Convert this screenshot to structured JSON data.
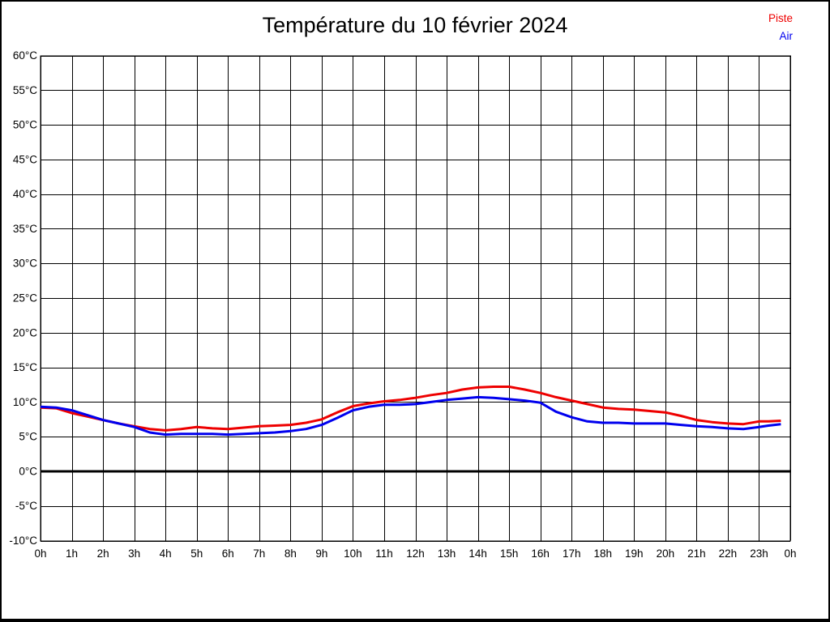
{
  "title": "Température du 10 février 2024",
  "legend": {
    "items": [
      {
        "label": "Piste",
        "color": "#ee0000"
      },
      {
        "label": "Air",
        "color": "#0000ee"
      }
    ]
  },
  "chart_data": {
    "type": "line",
    "title": "Température du 10 février 2024",
    "xlabel": "",
    "ylabel": "",
    "y_unit": "°C",
    "x_unit": "h",
    "xlim": [
      0,
      24
    ],
    "ylim": [
      -10,
      60
    ],
    "grid": "both",
    "zero_line": 0,
    "legend_position": "top-right",
    "y_ticks": [
      60,
      55,
      50,
      45,
      40,
      35,
      30,
      25,
      20,
      15,
      10,
      5,
      0,
      -5,
      -10
    ],
    "x_tick_labels": [
      "0h",
      "1h",
      "2h",
      "3h",
      "4h",
      "5h",
      "6h",
      "7h",
      "8h",
      "9h",
      "10h",
      "11h",
      "12h",
      "13h",
      "14h",
      "15h",
      "16h",
      "17h",
      "18h",
      "19h",
      "20h",
      "21h",
      "22h",
      "23h",
      "0h"
    ],
    "series": [
      {
        "name": "Piste",
        "color": "#ee0000",
        "x": [
          0,
          0.5,
          1,
          1.5,
          2,
          2.5,
          3,
          3.5,
          4,
          4.5,
          5,
          5.5,
          6,
          6.5,
          7,
          7.5,
          8,
          8.5,
          9,
          9.5,
          10,
          10.5,
          11,
          11.5,
          12,
          12.5,
          13,
          13.5,
          14,
          14.5,
          15,
          15.5,
          16,
          16.5,
          17,
          17.5,
          18,
          18.5,
          19,
          19.5,
          20,
          20.5,
          21,
          21.5,
          22,
          22.5,
          23,
          23.3,
          23.7
        ],
        "y": [
          9.2,
          9.1,
          8.4,
          7.9,
          7.4,
          6.9,
          6.5,
          6.1,
          5.9,
          6.1,
          6.4,
          6.2,
          6.1,
          6.3,
          6.5,
          6.6,
          6.7,
          7.0,
          7.5,
          8.5,
          9.4,
          9.8,
          10.1,
          10.3,
          10.6,
          11.0,
          11.3,
          11.8,
          12.1,
          12.2,
          12.2,
          11.8,
          11.3,
          10.7,
          10.2,
          9.7,
          9.2,
          9.0,
          8.9,
          8.7,
          8.5,
          8.0,
          7.4,
          7.1,
          6.9,
          6.8,
          7.2,
          7.2,
          7.3
        ]
      },
      {
        "name": "Air",
        "color": "#0000ee",
        "x": [
          0,
          0.5,
          1,
          1.5,
          2,
          2.5,
          3,
          3.5,
          4,
          4.5,
          5,
          5.5,
          6,
          6.5,
          7,
          7.5,
          8,
          8.5,
          9,
          9.5,
          10,
          10.5,
          11,
          11.5,
          12,
          12.5,
          13,
          13.5,
          14,
          14.5,
          15,
          15.5,
          16,
          16.5,
          17,
          17.5,
          18,
          18.5,
          19,
          19.5,
          20,
          20.5,
          21,
          21.5,
          22,
          22.5,
          23,
          23.3,
          23.7
        ],
        "y": [
          9.3,
          9.2,
          8.8,
          8.1,
          7.4,
          6.9,
          6.4,
          5.6,
          5.3,
          5.4,
          5.4,
          5.4,
          5.3,
          5.4,
          5.5,
          5.6,
          5.8,
          6.1,
          6.7,
          7.7,
          8.8,
          9.3,
          9.6,
          9.6,
          9.7,
          10.0,
          10.3,
          10.5,
          10.7,
          10.6,
          10.4,
          10.2,
          9.9,
          8.6,
          7.8,
          7.2,
          7.0,
          7.0,
          6.9,
          6.9,
          6.9,
          6.7,
          6.5,
          6.4,
          6.2,
          6.1,
          6.4,
          6.6,
          6.8
        ]
      }
    ]
  }
}
